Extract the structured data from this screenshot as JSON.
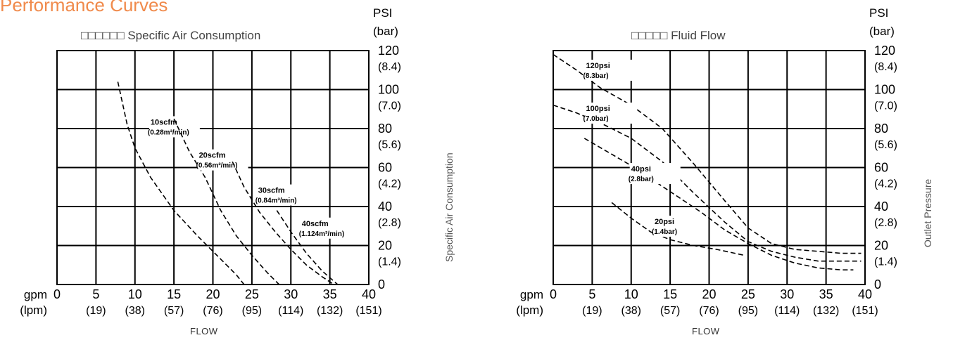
{
  "page_title": "Performance Curves",
  "colors": {
    "accent": "#f08a4b",
    "grid": "#000000",
    "curve": "#000000"
  },
  "chart_data": [
    {
      "type": "line",
      "title": "□□□□□□ Specific Air Consumption",
      "side_label": "Specific Air Consumption",
      "xlabel": "FLOW",
      "x_unit_label": "gpm",
      "x_unit_label_alt": "(lpm)",
      "y_unit_label": "PSI",
      "y_unit_label_alt": "(bar)",
      "xlim": [
        0,
        40
      ],
      "ylim": [
        0,
        120
      ],
      "x_ticks": [
        {
          "v": 0,
          "label": "0",
          "sub": ""
        },
        {
          "v": 5,
          "label": "5",
          "sub": "(19)"
        },
        {
          "v": 10,
          "label": "10",
          "sub": "(38)"
        },
        {
          "v": 15,
          "label": "15",
          "sub": "(57)"
        },
        {
          "v": 20,
          "label": "20",
          "sub": "(76)"
        },
        {
          "v": 25,
          "label": "25",
          "sub": "(95)"
        },
        {
          "v": 30,
          "label": "30",
          "sub": "(114)"
        },
        {
          "v": 35,
          "label": "35",
          "sub": "(132)"
        },
        {
          "v": 40,
          "label": "40",
          "sub": "(151)"
        }
      ],
      "y_ticks": [
        {
          "v": 0,
          "label": "0",
          "sub": ""
        },
        {
          "v": 20,
          "label": "20",
          "sub": "(1.4)"
        },
        {
          "v": 40,
          "label": "40",
          "sub": "(2.8)"
        },
        {
          "v": 60,
          "label": "60",
          "sub": "(4.2)"
        },
        {
          "v": 80,
          "label": "80",
          "sub": "(5.6)"
        },
        {
          "v": 100,
          "label": "100",
          "sub": "(7.0)"
        },
        {
          "v": 120,
          "label": "120",
          "sub": "(8.4)"
        }
      ],
      "grid": true,
      "series": [
        {
          "name": "10scfm",
          "name_sub": "(0.28m³/min)",
          "x": [
            7.8,
            9,
            10,
            12,
            15,
            18,
            21,
            23,
            24
          ],
          "y": [
            104,
            82,
            70,
            55,
            38,
            25,
            13,
            5,
            0
          ],
          "label_at": [
            12.0,
            82
          ]
        },
        {
          "name": "20scfm",
          "name_sub": "(0.56m³/min)",
          "x": [
            15,
            17,
            19,
            21,
            23,
            25,
            27,
            28.5
          ],
          "y": [
            85,
            68,
            55,
            38,
            25,
            15,
            6,
            0
          ],
          "label_at": [
            18.2,
            65
          ]
        },
        {
          "name": "30scfm",
          "name_sub": "(0.84m³/min)",
          "x": [
            22.5,
            24,
            26,
            28,
            30,
            32,
            34,
            35.5
          ],
          "y": [
            63,
            50,
            37,
            27,
            18,
            10,
            4,
            0
          ],
          "label_at": [
            25.8,
            47
          ]
        },
        {
          "name": "40scfm",
          "name_sub": "(1.124m³/min)",
          "x": [
            28.2,
            30,
            32,
            34,
            36
          ],
          "y": [
            38,
            27,
            16,
            7,
            0
          ],
          "label_at": [
            31.4,
            30
          ]
        }
      ]
    },
    {
      "type": "line",
      "title": "□□□□□ Fluid Flow",
      "side_label": "Outlet Pressure",
      "xlabel": "FLOW",
      "x_unit_label": "gpm",
      "x_unit_label_alt": "(lpm)",
      "y_unit_label": "PSI",
      "y_unit_label_alt": "(bar)",
      "xlim": [
        0,
        40
      ],
      "ylim": [
        0,
        120
      ],
      "x_ticks": [
        {
          "v": 0,
          "label": "0",
          "sub": ""
        },
        {
          "v": 5,
          "label": "5",
          "sub": "(19)"
        },
        {
          "v": 10,
          "label": "10",
          "sub": "(38)"
        },
        {
          "v": 15,
          "label": "15",
          "sub": "(57)"
        },
        {
          "v": 20,
          "label": "20",
          "sub": "(76)"
        },
        {
          "v": 25,
          "label": "25",
          "sub": "(95)"
        },
        {
          "v": 30,
          "label": "30",
          "sub": "(114)"
        },
        {
          "v": 35,
          "label": "35",
          "sub": "(132)"
        },
        {
          "v": 40,
          "label": "40",
          "sub": "(151)"
        }
      ],
      "y_ticks": [
        {
          "v": 0,
          "label": "0",
          "sub": ""
        },
        {
          "v": 20,
          "label": "20",
          "sub": "(1.4)"
        },
        {
          "v": 40,
          "label": "40",
          "sub": "(2.8)"
        },
        {
          "v": 60,
          "label": "60",
          "sub": "(4.2)"
        },
        {
          "v": 80,
          "label": "80",
          "sub": "(5.6)"
        },
        {
          "v": 100,
          "label": "100",
          "sub": "(7.0)"
        },
        {
          "v": 120,
          "label": "120",
          "sub": "(8.4)"
        }
      ],
      "grid": true,
      "series": [
        {
          "name": "120psi",
          "name_sub": "(8.3bar)",
          "x": [
            0,
            3,
            6,
            10,
            14,
            18,
            22,
            25,
            28,
            31,
            34,
            37,
            39.5
          ],
          "y": [
            118,
            110,
            101,
            92,
            80,
            62,
            43,
            29,
            21,
            18,
            17,
            16,
            16
          ],
          "label_at": [
            4.2,
            111
          ]
        },
        {
          "name": "100psi",
          "name_sub": "(7.0bar)",
          "x": [
            0,
            3,
            6,
            10,
            14,
            18,
            22,
            25,
            28,
            31,
            34,
            37,
            39.5
          ],
          "y": [
            92,
            88,
            83,
            75,
            63,
            47,
            32,
            22,
            17,
            14,
            12,
            12,
            12
          ],
          "label_at": [
            4.2,
            89
          ]
        },
        {
          "name": "40psi",
          "name_sub": "(2.8bar)",
          "x": [
            4,
            7,
            10,
            13,
            16,
            19,
            22,
            25,
            28,
            31,
            34,
            37,
            38.5
          ],
          "y": [
            75,
            68,
            61,
            53,
            45,
            37,
            28,
            21,
            15,
            11,
            8.5,
            7.5,
            7.5
          ],
          "label_at": [
            10.0,
            58
          ]
        },
        {
          "name": "20psi",
          "name_sub": "(1.4bar)",
          "x": [
            7.5,
            10,
            12.5,
            15,
            18,
            21,
            24.5
          ],
          "y": [
            42,
            34,
            27,
            23,
            20,
            18,
            15
          ],
          "label_at": [
            13.0,
            31
          ]
        }
      ]
    }
  ]
}
